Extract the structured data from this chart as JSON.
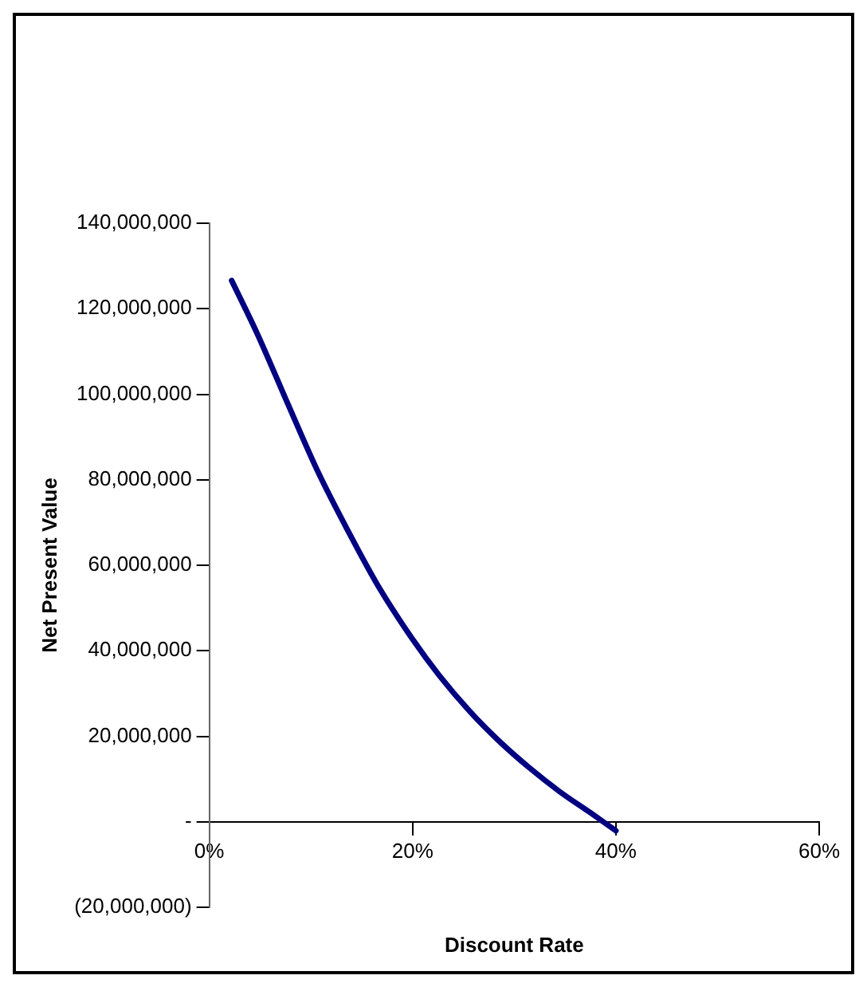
{
  "chart_data": {
    "type": "line",
    "xlabel": "Discount Rate",
    "ylabel": "Net Present Value",
    "x": [
      2.2,
      4.75,
      7.7,
      10.7,
      13.7,
      16.6,
      20,
      22.6,
      25.6,
      28.5,
      31.5,
      34.5,
      37.5,
      40
    ],
    "series": [
      {
        "color": "#000080",
        "values": [
          126600000,
          114000000,
          97900000,
          81800000,
          67800000,
          55200000,
          42700000,
          34300000,
          25900000,
          18900000,
          12600000,
          7000000,
          2100000,
          -2100000
        ]
      }
    ],
    "xlim": [
      0,
      60
    ],
    "xticks": [
      {
        "value": 0,
        "label": "0%"
      },
      {
        "value": 20,
        "label": "20%"
      },
      {
        "value": 40,
        "label": "40%"
      },
      {
        "value": 60,
        "label": "60%"
      }
    ],
    "ylim": [
      -20000000,
      140000000
    ],
    "yticks": [
      {
        "value": -20000000,
        "label": "(20,000,000)"
      },
      {
        "value": 0,
        "label": "-"
      },
      {
        "value": 20000000,
        "label": "20,000,000"
      },
      {
        "value": 40000000,
        "label": "40,000,000"
      },
      {
        "value": 60000000,
        "label": "60,000,000"
      },
      {
        "value": 80000000,
        "label": "80,000,000"
      },
      {
        "value": 100000000,
        "label": "100,000,000"
      },
      {
        "value": 120000000,
        "label": "120,000,000"
      },
      {
        "value": 140000000,
        "label": "140,000,000"
      }
    ],
    "grid": false,
    "legend": false,
    "marker": "none",
    "line_style": "solid"
  }
}
